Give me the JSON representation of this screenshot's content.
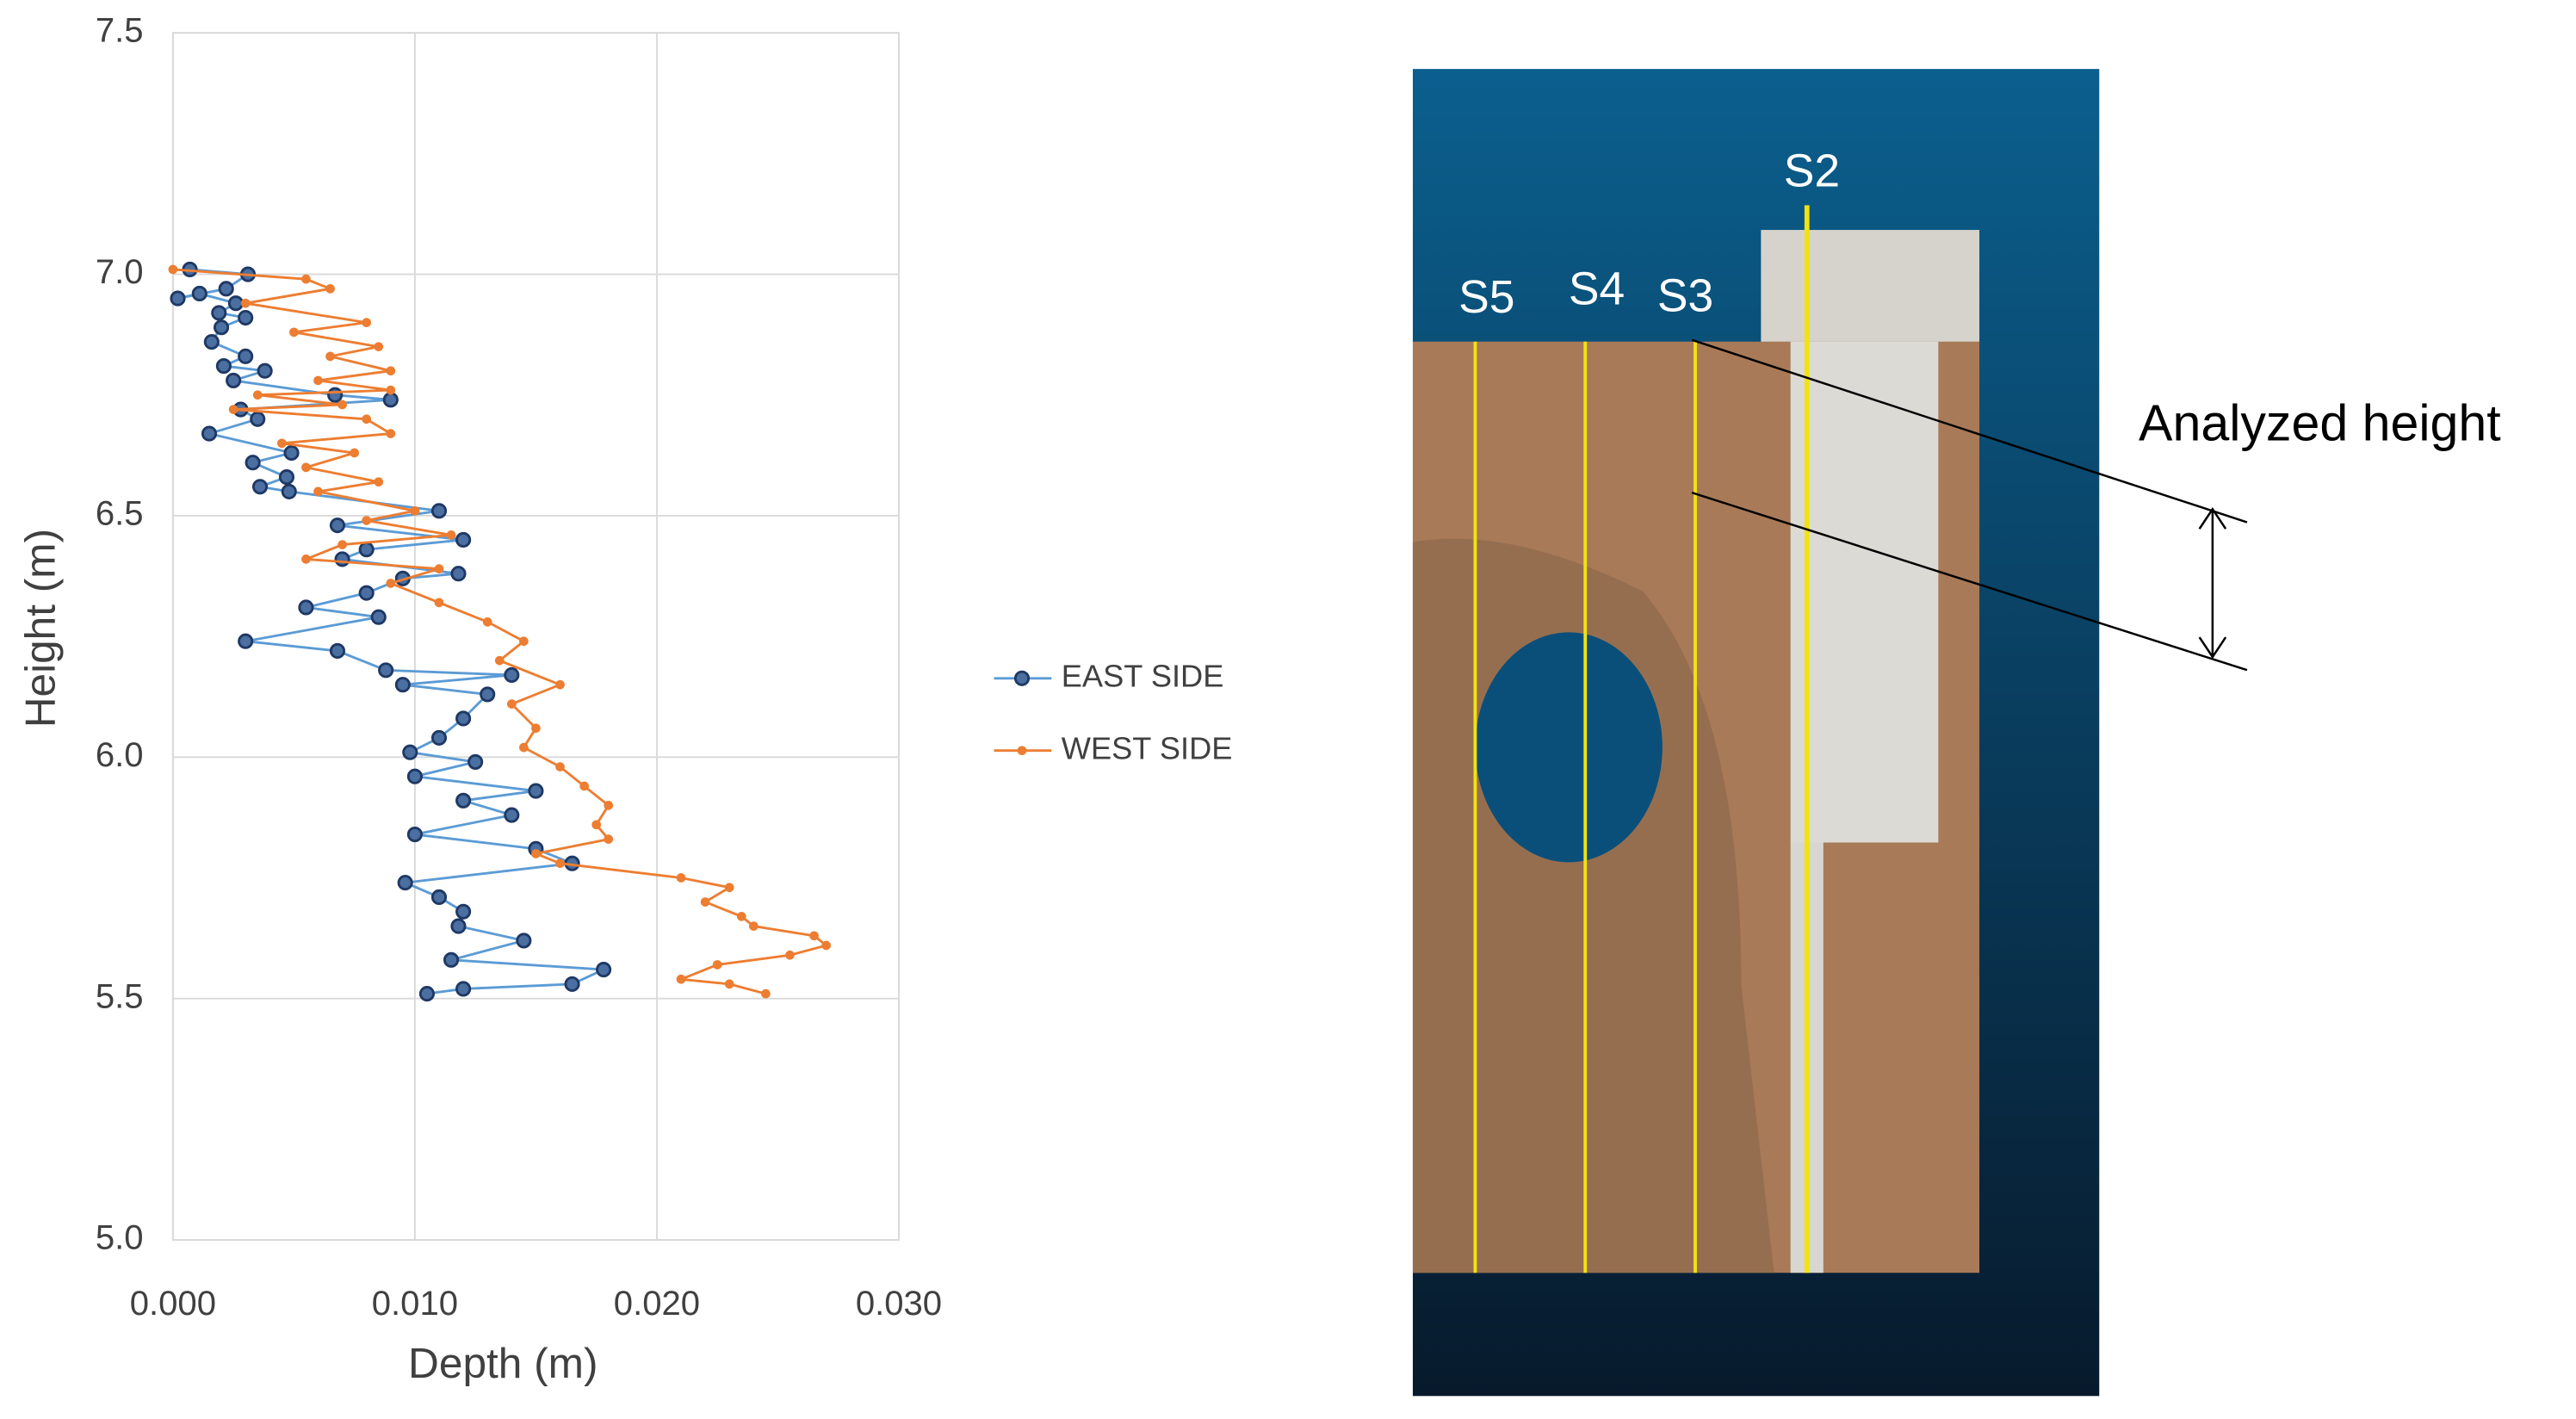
{
  "chart_data": {
    "type": "line",
    "x_label": "Depth (m)",
    "y_label": "Height (m)",
    "xlim": [
      0,
      0.03
    ],
    "ylim": [
      5,
      7.5
    ],
    "xticks": [
      {
        "value": 0,
        "label": "0.000"
      },
      {
        "value": 0.01,
        "label": "0.010"
      },
      {
        "value": 0.02,
        "label": "0.020"
      },
      {
        "value": 0.03,
        "label": "0.030"
      }
    ],
    "yticks": [
      {
        "value": 5,
        "label": "5.0"
      },
      5.5,
      {
        "value": 6,
        "label": "6.0"
      },
      6.5,
      {
        "value": 7,
        "label": "7.0"
      },
      7.5
    ],
    "grid": true,
    "legend": "right",
    "series": [
      {
        "name": "EAST SIDE",
        "color": "#5b9bd5",
        "marker_color": "#1f3864",
        "x": [
          0.0007,
          0.0031,
          0.0022,
          0.0002,
          0.0011,
          0.0026,
          0.0019,
          0.003,
          0.002,
          0.0016,
          0.003,
          0.0021,
          0.0038,
          0.0025,
          0.0067,
          0.009,
          0.0028,
          0.0035,
          0.0015,
          0.0049,
          0.0033,
          0.0047,
          0.0036,
          0.0048,
          0.011,
          0.0068,
          0.012,
          0.008,
          0.007,
          0.0118,
          0.0095,
          0.008,
          0.0055,
          0.0085,
          0.003,
          0.0068,
          0.0088,
          0.014,
          0.0095,
          0.013,
          0.012,
          0.011,
          0.0098,
          0.0125,
          0.01,
          0.015,
          0.012,
          0.014,
          0.01,
          0.015,
          0.0165,
          0.0096,
          0.011,
          0.012,
          0.0118,
          0.0145,
          0.0115,
          0.0178,
          0.0165,
          0.012,
          0.0105
        ],
        "values": [
          7.01,
          7.0,
          6.97,
          6.95,
          6.96,
          6.94,
          6.92,
          6.91,
          6.89,
          6.86,
          6.83,
          6.81,
          6.8,
          6.78,
          6.75,
          6.74,
          6.72,
          6.7,
          6.67,
          6.63,
          6.61,
          6.58,
          6.56,
          6.55,
          6.51,
          6.48,
          6.45,
          6.43,
          6.41,
          6.38,
          6.37,
          6.34,
          6.31,
          6.29,
          6.24,
          6.22,
          6.18,
          6.17,
          6.15,
          6.13,
          6.08,
          6.04,
          6.01,
          5.99,
          5.96,
          5.93,
          5.91,
          5.88,
          5.84,
          5.81,
          5.78,
          5.74,
          5.71,
          5.68,
          5.65,
          5.62,
          5.58,
          5.56,
          5.53,
          5.52,
          5.51
        ]
      },
      {
        "name": "WEST SIDE",
        "color": "#ed7d31",
        "marker_color": "#ed7d31",
        "x": [
          0.0,
          0.0055,
          0.0065,
          0.003,
          0.008,
          0.005,
          0.0085,
          0.0065,
          0.009,
          0.006,
          0.009,
          0.0035,
          0.007,
          0.0025,
          0.008,
          0.009,
          0.0045,
          0.0075,
          0.0055,
          0.0085,
          0.006,
          0.01,
          0.008,
          0.0115,
          0.007,
          0.0055,
          0.011,
          0.009,
          0.011,
          0.013,
          0.0145,
          0.0135,
          0.016,
          0.014,
          0.015,
          0.0145,
          0.016,
          0.017,
          0.018,
          0.0175,
          0.018,
          0.015,
          0.016,
          0.021,
          0.023,
          0.022,
          0.0235,
          0.024,
          0.0265,
          0.027,
          0.0255,
          0.0225,
          0.021,
          0.023,
          0.0245
        ],
        "values": [
          7.01,
          6.99,
          6.97,
          6.94,
          6.9,
          6.88,
          6.85,
          6.83,
          6.8,
          6.78,
          6.76,
          6.75,
          6.73,
          6.72,
          6.7,
          6.67,
          6.65,
          6.63,
          6.6,
          6.57,
          6.55,
          6.51,
          6.49,
          6.46,
          6.44,
          6.41,
          6.39,
          6.36,
          6.32,
          6.28,
          6.24,
          6.2,
          6.15,
          6.11,
          6.06,
          6.02,
          5.98,
          5.94,
          5.9,
          5.86,
          5.83,
          5.8,
          5.78,
          5.75,
          5.73,
          5.7,
          5.67,
          5.65,
          5.63,
          5.61,
          5.59,
          5.57,
          5.54,
          5.53,
          5.51
        ]
      }
    ],
    "annotations": [
      "S2",
      "S3",
      "S4",
      "S5",
      "Analyzed height"
    ]
  }
}
